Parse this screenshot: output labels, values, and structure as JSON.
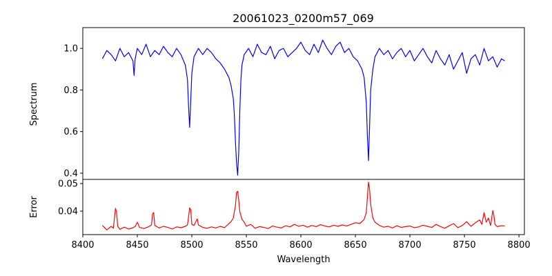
{
  "title": "20061023_0200m57_069",
  "chart_data": [
    {
      "type": "line",
      "panel": "top",
      "title": "20061023_0200m57_069",
      "xlabel": "",
      "ylabel": "Spectrum",
      "xlim": [
        8400,
        8805
      ],
      "ylim": [
        0.37,
        1.1
      ],
      "yticks": [
        0.4,
        0.6,
        0.8,
        1.0
      ],
      "ytick_labels": [
        "0.4",
        "0.6",
        "0.8",
        "1.0"
      ],
      "grid": false,
      "color": "#0000ff",
      "series": [
        {
          "x": [
            8418,
            8422,
            8426,
            8430,
            8434,
            8438,
            8442,
            8446,
            8447,
            8448,
            8450,
            8454,
            8458,
            8462,
            8466,
            8470,
            8474,
            8478,
            8482,
            8486,
            8490,
            8494,
            8496,
            8497,
            8498,
            8499,
            8500,
            8502,
            8506,
            8510,
            8514,
            8518,
            8522,
            8526,
            8530,
            8534,
            8536,
            8538,
            8539,
            8540,
            8541,
            8542,
            8543,
            8544,
            8545,
            8546,
            8548,
            8552,
            8556,
            8560,
            8564,
            8568,
            8572,
            8576,
            8580,
            8584,
            8588,
            8592,
            8596,
            8600,
            8604,
            8608,
            8612,
            8616,
            8620,
            8624,
            8628,
            8632,
            8636,
            8640,
            8644,
            8648,
            8652,
            8656,
            8658,
            8660,
            8661,
            8662,
            8663,
            8664,
            8666,
            8668,
            8672,
            8676,
            8680,
            8684,
            8688,
            8692,
            8696,
            8700,
            8704,
            8708,
            8712,
            8716,
            8720,
            8724,
            8728,
            8732,
            8736,
            8740,
            8744,
            8748,
            8752,
            8756,
            8760,
            8764,
            8768,
            8772,
            8776,
            8780,
            8784,
            8787
          ],
          "y": [
            0.95,
            0.99,
            0.97,
            0.94,
            1.0,
            0.96,
            0.98,
            0.94,
            0.87,
            0.95,
            1.0,
            0.97,
            1.02,
            0.96,
            0.99,
            0.97,
            1.01,
            0.98,
            0.96,
            1.0,
            0.97,
            0.92,
            0.85,
            0.72,
            0.62,
            0.75,
            0.88,
            0.96,
            1.0,
            0.97,
            1.0,
            0.98,
            0.95,
            0.93,
            0.9,
            0.86,
            0.82,
            0.76,
            0.68,
            0.55,
            0.45,
            0.39,
            0.5,
            0.7,
            0.85,
            0.92,
            0.97,
            1.0,
            0.96,
            1.02,
            0.98,
            0.97,
            1.01,
            0.95,
            0.99,
            1.0,
            0.96,
            0.98,
            1.0,
            1.03,
            0.99,
            0.97,
            1.02,
            0.98,
            1.04,
            1.0,
            0.97,
            1.01,
            1.03,
            0.98,
            1.0,
            0.96,
            0.94,
            0.9,
            0.86,
            0.74,
            0.58,
            0.46,
            0.62,
            0.8,
            0.9,
            0.96,
            1.0,
            0.97,
            0.99,
            0.95,
            0.98,
            1.0,
            0.96,
            0.99,
            0.94,
            0.97,
            1.0,
            0.96,
            0.93,
            0.99,
            0.95,
            0.92,
            0.97,
            0.9,
            0.94,
            0.98,
            0.88,
            0.95,
            0.97,
            0.92,
            1.0,
            0.94,
            0.96,
            0.91,
            0.95,
            0.94
          ]
        }
      ]
    },
    {
      "type": "line",
      "panel": "bottom",
      "title": "",
      "xlabel": "Wavelength",
      "ylabel": "Error",
      "xlim": [
        8400,
        8805
      ],
      "ylim": [
        0.0315,
        0.0515
      ],
      "xticks": [
        8400,
        8450,
        8500,
        8550,
        8600,
        8650,
        8700,
        8750,
        8800
      ],
      "xtick_labels": [
        "8400",
        "8450",
        "8500",
        "8550",
        "8600",
        "8650",
        "8700",
        "8750",
        "8800"
      ],
      "yticks": [
        0.04,
        0.05
      ],
      "ytick_labels": [
        "0.04",
        "0.05"
      ],
      "grid": false,
      "color": "#ff0000",
      "series": [
        {
          "x": [
            8418,
            8422,
            8426,
            8428,
            8430,
            8431,
            8432,
            8434,
            8438,
            8442,
            8446,
            8448,
            8450,
            8452,
            8456,
            8460,
            8463,
            8464,
            8465,
            8466,
            8470,
            8474,
            8478,
            8482,
            8486,
            8490,
            8494,
            8496,
            8497,
            8498,
            8499,
            8500,
            8502,
            8504,
            8505,
            8506,
            8510,
            8514,
            8518,
            8522,
            8526,
            8530,
            8534,
            8536,
            8538,
            8540,
            8541,
            8542,
            8543,
            8544,
            8546,
            8548,
            8550,
            8554,
            8558,
            8562,
            8566,
            8570,
            8574,
            8578,
            8582,
            8586,
            8590,
            8594,
            8598,
            8602,
            8606,
            8610,
            8614,
            8618,
            8622,
            8626,
            8630,
            8634,
            8638,
            8642,
            8646,
            8650,
            8654,
            8656,
            8658,
            8660,
            8661,
            8662,
            8663,
            8664,
            8666,
            8668,
            8672,
            8676,
            8680,
            8684,
            8688,
            8692,
            8696,
            8700,
            8704,
            8708,
            8712,
            8716,
            8720,
            8724,
            8728,
            8732,
            8736,
            8740,
            8744,
            8748,
            8752,
            8756,
            8760,
            8764,
            8766,
            8768,
            8770,
            8772,
            8774,
            8776,
            8777,
            8778,
            8780,
            8784,
            8787
          ],
          "y": [
            0.0348,
            0.0332,
            0.0345,
            0.0338,
            0.041,
            0.0395,
            0.0345,
            0.0334,
            0.0342,
            0.0335,
            0.034,
            0.0344,
            0.036,
            0.0341,
            0.0337,
            0.0343,
            0.035,
            0.039,
            0.0395,
            0.0348,
            0.0339,
            0.0345,
            0.0341,
            0.0335,
            0.0343,
            0.034,
            0.0345,
            0.035,
            0.038,
            0.0412,
            0.0405,
            0.0352,
            0.0348,
            0.0365,
            0.0372,
            0.035,
            0.0341,
            0.0338,
            0.0343,
            0.0339,
            0.0345,
            0.034,
            0.0355,
            0.0362,
            0.0375,
            0.042,
            0.0468,
            0.0472,
            0.044,
            0.0398,
            0.037,
            0.036,
            0.0345,
            0.0352,
            0.0338,
            0.0344,
            0.0341,
            0.0337,
            0.0346,
            0.0342,
            0.0339,
            0.0347,
            0.0343,
            0.0352,
            0.0345,
            0.0349,
            0.0342,
            0.0348,
            0.0344,
            0.0351,
            0.0346,
            0.0343,
            0.0349,
            0.0345,
            0.035,
            0.0346,
            0.0352,
            0.0358,
            0.0355,
            0.0362,
            0.037,
            0.0395,
            0.045,
            0.0505,
            0.048,
            0.0425,
            0.0375,
            0.036,
            0.0348,
            0.0342,
            0.0345,
            0.0339,
            0.0347,
            0.0341,
            0.0344,
            0.0346,
            0.034,
            0.0343,
            0.0349,
            0.0345,
            0.0341,
            0.0352,
            0.0344,
            0.0338,
            0.0347,
            0.0355,
            0.034,
            0.0348,
            0.0362,
            0.0345,
            0.0358,
            0.0368,
            0.0352,
            0.0395,
            0.036,
            0.0375,
            0.0348,
            0.0402,
            0.0385,
            0.0352,
            0.0344,
            0.0347,
            0.0346
          ]
        }
      ]
    }
  ]
}
